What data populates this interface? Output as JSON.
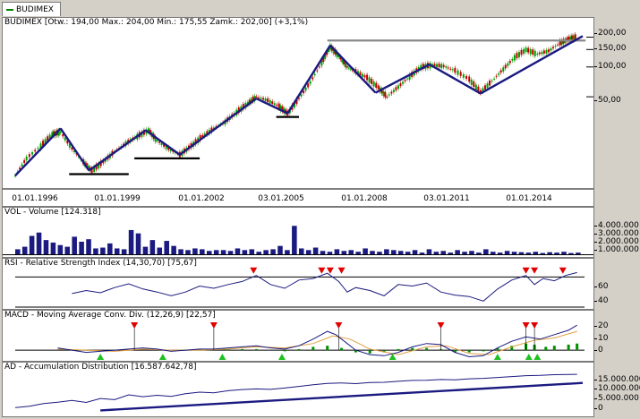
{
  "tab": {
    "label": "BUDIMEX"
  },
  "main": {
    "title": "BUDIMEX [Otw.: 194,00  Max.: 204,00  Min.: 175,55  Zamk.: 202,00] (+3,1%)",
    "y_ticks": [
      "200,00",
      "150,00",
      "100,00",
      "50,00"
    ],
    "x_ticks": [
      "01.01.1996",
      "01.01.1999",
      "01.01.2002",
      "03.01.2005",
      "01.01.2008",
      "03.01.2011",
      "01.01.2014"
    ]
  },
  "volume": {
    "title": "VOL - Volume [124.318]",
    "y_ticks": [
      "4.000.000",
      "3.000.000",
      "2.000.000",
      "1.000.000"
    ]
  },
  "rsi": {
    "title": "RSI - Relative Strength Index (14,30,70) [75,67]",
    "y_ticks": [
      "60",
      "40"
    ]
  },
  "macd": {
    "title": "MACD - Moving Average Conv. Div. (12,26,9) [22,57]",
    "y_ticks": [
      "20",
      "10",
      "0"
    ]
  },
  "ad": {
    "title": "AD - Accumulation Distribution [16.587.642,78]",
    "y_ticks": [
      "15.000.000",
      "10.000.000",
      "5.000.000",
      "0"
    ]
  },
  "chart_data": {
    "type": "line",
    "title": "BUDIMEX [Otw.: 194,00  Max.: 204,00  Min.: 175,55  Zamk.: 202,00] (+3,1%)",
    "x_ticks": [
      "01.01.1996",
      "01.01.1999",
      "01.01.2002",
      "03.01.2005",
      "01.01.2008",
      "03.01.2011",
      "01.01.2014"
    ],
    "y_ticks": [
      200,
      150,
      100,
      50
    ],
    "y_scale": "log",
    "colors": {
      "up": "#00a000",
      "down": "#c00000",
      "trend": "#1a1a80",
      "volume": "#1a1a80",
      "macd_hist": "#009000",
      "signal": "#e0a040"
    },
    "series": [
      {
        "values": [
          [
            1996.0,
            8
          ],
          [
            1996.4,
            12
          ],
          [
            1996.9,
            16
          ],
          [
            1997.3,
            21
          ],
          [
            1997.6,
            22
          ],
          [
            1998.0,
            15
          ],
          [
            1998.4,
            11
          ],
          [
            1998.7,
            9
          ],
          [
            1999.1,
            11
          ],
          [
            1999.5,
            14
          ],
          [
            1999.9,
            17
          ],
          [
            2000.3,
            20
          ],
          [
            2000.7,
            23
          ],
          [
            2001.0,
            18
          ],
          [
            2001.4,
            15
          ],
          [
            2001.8,
            13
          ],
          [
            2002.2,
            16
          ],
          [
            2002.6,
            20
          ],
          [
            2003.0,
            24
          ],
          [
            2003.4,
            28
          ],
          [
            2003.8,
            35
          ],
          [
            2004.2,
            43
          ],
          [
            2004.5,
            50
          ],
          [
            2004.9,
            46
          ],
          [
            2005.3,
            40
          ],
          [
            2005.6,
            34
          ],
          [
            2006.0,
            48
          ],
          [
            2006.4,
            70
          ],
          [
            2006.8,
            110
          ],
          [
            2007.1,
            160
          ],
          [
            2007.4,
            130
          ],
          [
            2007.7,
            100
          ],
          [
            2008.0,
            90
          ],
          [
            2008.4,
            78
          ],
          [
            2008.8,
            62
          ],
          [
            2009.1,
            50
          ],
          [
            2009.5,
            63
          ],
          [
            2009.9,
            80
          ],
          [
            2010.3,
            100
          ],
          [
            2010.7,
            105
          ],
          [
            2011.1,
            102
          ],
          [
            2011.5,
            92
          ],
          [
            2012.0,
            75
          ],
          [
            2012.4,
            56
          ],
          [
            2012.8,
            72
          ],
          [
            2013.2,
            95
          ],
          [
            2013.6,
            125
          ],
          [
            2014.0,
            150
          ],
          [
            2014.4,
            135
          ],
          [
            2014.8,
            145
          ],
          [
            2015.2,
            175
          ],
          [
            2015.5,
            190
          ],
          [
            2015.8,
            202
          ]
        ]
      }
    ],
    "trendlines": [
      [
        [
          1996.0,
          8
        ],
        [
          1997.6,
          24
        ]
      ],
      [
        [
          1997.6,
          24
        ],
        [
          1998.6,
          9
        ]
      ],
      [
        [
          1998.6,
          9
        ],
        [
          2000.6,
          23
        ]
      ],
      [
        [
          2000.6,
          23
        ],
        [
          2001.8,
          13
        ]
      ],
      [
        [
          2001.8,
          13
        ],
        [
          2004.5,
          48
        ]
      ],
      [
        [
          2004.5,
          48
        ],
        [
          2005.6,
          34
        ]
      ],
      [
        [
          2005.6,
          34
        ],
        [
          2007.1,
          165
        ]
      ],
      [
        [
          2007.1,
          165
        ],
        [
          2008.7,
          55
        ]
      ],
      [
        [
          2008.7,
          55
        ],
        [
          2010.6,
          106
        ]
      ],
      [
        [
          2010.6,
          106
        ],
        [
          2012.4,
          54
        ]
      ],
      [
        [
          2012.4,
          54
        ],
        [
          2016.0,
          205
        ]
      ]
    ],
    "support_lines": [
      [
        1997.9,
        2000.0,
        9
      ],
      [
        2000.2,
        2002.5,
        13
      ],
      [
        2005.2,
        2006.0,
        34
      ]
    ],
    "resistance_line": {
      "x0": 2007.0,
      "x1": 2016.1,
      "y": 185
    },
    "volume_ylim": [
      0,
      4500000
    ],
    "volume": [
      600000,
      900000,
      2200000,
      2600000,
      1700000,
      1400000,
      1100000,
      900000,
      2100000,
      1500000,
      1800000,
      700000,
      800000,
      1300000,
      700000,
      600000,
      2900000,
      2500000,
      900000,
      1700000,
      800000,
      1600000,
      1000000,
      600000,
      500000,
      700000,
      600000,
      400000,
      500000,
      500000,
      400000,
      700000,
      500000,
      600000,
      300000,
      500000,
      600000,
      1000000,
      500000,
      3400000,
      700000,
      500000,
      800000,
      400000,
      300000,
      600000,
      400000,
      500000,
      300000,
      700000,
      400000,
      300000,
      600000,
      500000,
      400000,
      300000,
      500000,
      200000,
      600000,
      300000,
      400000,
      200000,
      500000,
      300000,
      400000,
      200000,
      600000,
      300000,
      200000,
      400000,
      300000,
      250000,
      200000,
      300000,
      150000,
      250000,
      200000,
      300000,
      150000,
      200000
    ],
    "rsi_ylim": [
      30,
      80
    ],
    "rsi_levels": [
      70,
      30
    ],
    "rsi": [
      [
        1998.0,
        48
      ],
      [
        1998.5,
        52
      ],
      [
        1999.0,
        49
      ],
      [
        1999.5,
        56
      ],
      [
        2000.0,
        61
      ],
      [
        2000.5,
        54
      ],
      [
        2001.0,
        50
      ],
      [
        2001.5,
        45
      ],
      [
        2002.0,
        50
      ],
      [
        2002.5,
        58
      ],
      [
        2003.0,
        55
      ],
      [
        2003.5,
        60
      ],
      [
        2004.0,
        64
      ],
      [
        2004.5,
        72
      ],
      [
        2005.0,
        60
      ],
      [
        2005.5,
        55
      ],
      [
        2006.0,
        66
      ],
      [
        2006.5,
        68
      ],
      [
        2007.0,
        75
      ],
      [
        2007.4,
        64
      ],
      [
        2007.7,
        50
      ],
      [
        2008.0,
        56
      ],
      [
        2008.5,
        52
      ],
      [
        2009.0,
        45
      ],
      [
        2009.5,
        60
      ],
      [
        2010.0,
        58
      ],
      [
        2010.5,
        62
      ],
      [
        2011.0,
        50
      ],
      [
        2011.5,
        46
      ],
      [
        2012.0,
        44
      ],
      [
        2012.5,
        38
      ],
      [
        2013.0,
        54
      ],
      [
        2013.5,
        66
      ],
      [
        2014.0,
        72
      ],
      [
        2014.3,
        60
      ],
      [
        2014.6,
        68
      ],
      [
        2015.0,
        65
      ],
      [
        2015.4,
        72
      ],
      [
        2015.8,
        76
      ]
    ],
    "rsi_sell_markers": [
      2004.4,
      2006.8,
      2007.1,
      2007.5,
      2014.0,
      2014.3,
      2015.3
    ],
    "macd_ylim": [
      -8,
      26
    ],
    "macd": [
      [
        1997.5,
        2
      ],
      [
        1998.0,
        0
      ],
      [
        1998.5,
        -2
      ],
      [
        1999.0,
        -1
      ],
      [
        1999.5,
        0
      ],
      [
        2000.0,
        1
      ],
      [
        2000.5,
        2
      ],
      [
        2001.0,
        1
      ],
      [
        2001.5,
        -1
      ],
      [
        2002.0,
        0
      ],
      [
        2002.5,
        1
      ],
      [
        2003.0,
        1
      ],
      [
        2003.5,
        2
      ],
      [
        2004.0,
        3
      ],
      [
        2004.5,
        4
      ],
      [
        2005.0,
        2
      ],
      [
        2005.5,
        1
      ],
      [
        2006.0,
        4
      ],
      [
        2006.5,
        10
      ],
      [
        2007.0,
        17
      ],
      [
        2007.3,
        14
      ],
      [
        2007.7,
        6
      ],
      [
        2008.0,
        0
      ],
      [
        2008.5,
        -4
      ],
      [
        2009.0,
        -5
      ],
      [
        2009.5,
        -2
      ],
      [
        2010.0,
        3
      ],
      [
        2010.5,
        6
      ],
      [
        2011.0,
        5
      ],
      [
        2011.5,
        -2
      ],
      [
        2012.0,
        -6
      ],
      [
        2012.5,
        -5
      ],
      [
        2013.0,
        2
      ],
      [
        2013.5,
        8
      ],
      [
        2014.0,
        12
      ],
      [
        2014.5,
        10
      ],
      [
        2015.0,
        14
      ],
      [
        2015.5,
        18
      ],
      [
        2015.8,
        22.57
      ]
    ],
    "macd_signal": [
      [
        1997.5,
        1
      ],
      [
        1998.5,
        0
      ],
      [
        1999.5,
        -1
      ],
      [
        2000.5,
        1
      ],
      [
        2001.5,
        0
      ],
      [
        2002.5,
        0
      ],
      [
        2003.5,
        1
      ],
      [
        2004.5,
        3
      ],
      [
        2005.5,
        2
      ],
      [
        2006.5,
        6
      ],
      [
        2007.2,
        13
      ],
      [
        2007.8,
        10
      ],
      [
        2008.5,
        1
      ],
      [
        2009.5,
        -4
      ],
      [
        2010.5,
        3
      ],
      [
        2011.2,
        4
      ],
      [
        2012.0,
        -3
      ],
      [
        2012.7,
        -4
      ],
      [
        2013.5,
        3
      ],
      [
        2014.3,
        9
      ],
      [
        2015.0,
        11
      ],
      [
        2015.8,
        17
      ]
    ],
    "macd_hist": [
      [
        2002.5,
        1
      ],
      [
        2003.0,
        1
      ],
      [
        2003.5,
        1
      ],
      [
        2004.0,
        1
      ],
      [
        2004.5,
        1
      ],
      [
        2005.5,
        -1
      ],
      [
        2006.0,
        1
      ],
      [
        2006.5,
        3
      ],
      [
        2007.0,
        4
      ],
      [
        2007.5,
        2
      ],
      [
        2008.0,
        -2
      ],
      [
        2008.5,
        -3
      ],
      [
        2009.0,
        -2
      ],
      [
        2009.5,
        1
      ],
      [
        2010.0,
        2
      ],
      [
        2010.5,
        2
      ],
      [
        2011.0,
        1
      ],
      [
        2011.5,
        -2
      ],
      [
        2012.0,
        -2
      ],
      [
        2012.5,
        -1
      ],
      [
        2013.0,
        2
      ],
      [
        2013.5,
        4
      ],
      [
        2014.0,
        6
      ],
      [
        2014.3,
        5
      ],
      [
        2014.7,
        3
      ],
      [
        2015.0,
        4
      ],
      [
        2015.5,
        5
      ],
      [
        2015.8,
        6
      ]
    ],
    "macd_sell_markers": [
      2000.2,
      2003.0,
      2007.4,
      2011.0,
      2014.0,
      2014.3
    ],
    "macd_buy_markers": [
      1999.0,
      2001.2,
      2003.3,
      2005.4,
      2009.3,
      2013.0,
      2014.1,
      2014.4
    ],
    "ad_ylim": [
      -1000000,
      17000000
    ],
    "ad": [
      [
        1996.0,
        2000000
      ],
      [
        1996.5,
        2600000
      ],
      [
        1997.0,
        3800000
      ],
      [
        1997.5,
        4400000
      ],
      [
        1998.0,
        5200000
      ],
      [
        1998.5,
        4300000
      ],
      [
        1999.0,
        6000000
      ],
      [
        1999.5,
        5500000
      ],
      [
        2000.0,
        7600000
      ],
      [
        2000.5,
        6800000
      ],
      [
        2001.0,
        7400000
      ],
      [
        2001.5,
        6900000
      ],
      [
        2002.0,
        8100000
      ],
      [
        2002.5,
        8800000
      ],
      [
        2003.0,
        8500000
      ],
      [
        2003.5,
        9400000
      ],
      [
        2004.0,
        9900000
      ],
      [
        2004.5,
        10200000
      ],
      [
        2005.0,
        10000000
      ],
      [
        2005.5,
        10600000
      ],
      [
        2006.0,
        11300000
      ],
      [
        2006.5,
        12000000
      ],
      [
        2007.0,
        12600000
      ],
      [
        2007.5,
        12800000
      ],
      [
        2008.0,
        12500000
      ],
      [
        2008.5,
        13000000
      ],
      [
        2009.0,
        13100000
      ],
      [
        2009.5,
        13500000
      ],
      [
        2010.0,
        13900000
      ],
      [
        2010.5,
        14000000
      ],
      [
        2011.0,
        14300000
      ],
      [
        2011.5,
        14200000
      ],
      [
        2012.0,
        14600000
      ],
      [
        2012.5,
        14800000
      ],
      [
        2013.0,
        15200000
      ],
      [
        2013.5,
        15600000
      ],
      [
        2014.0,
        16000000
      ],
      [
        2014.5,
        16100000
      ],
      [
        2015.0,
        16400000
      ],
      [
        2015.8,
        16587642
      ]
    ],
    "ad_trend": [
      [
        1999.0,
        800000
      ],
      [
        2016.0,
        12800000
      ]
    ]
  }
}
